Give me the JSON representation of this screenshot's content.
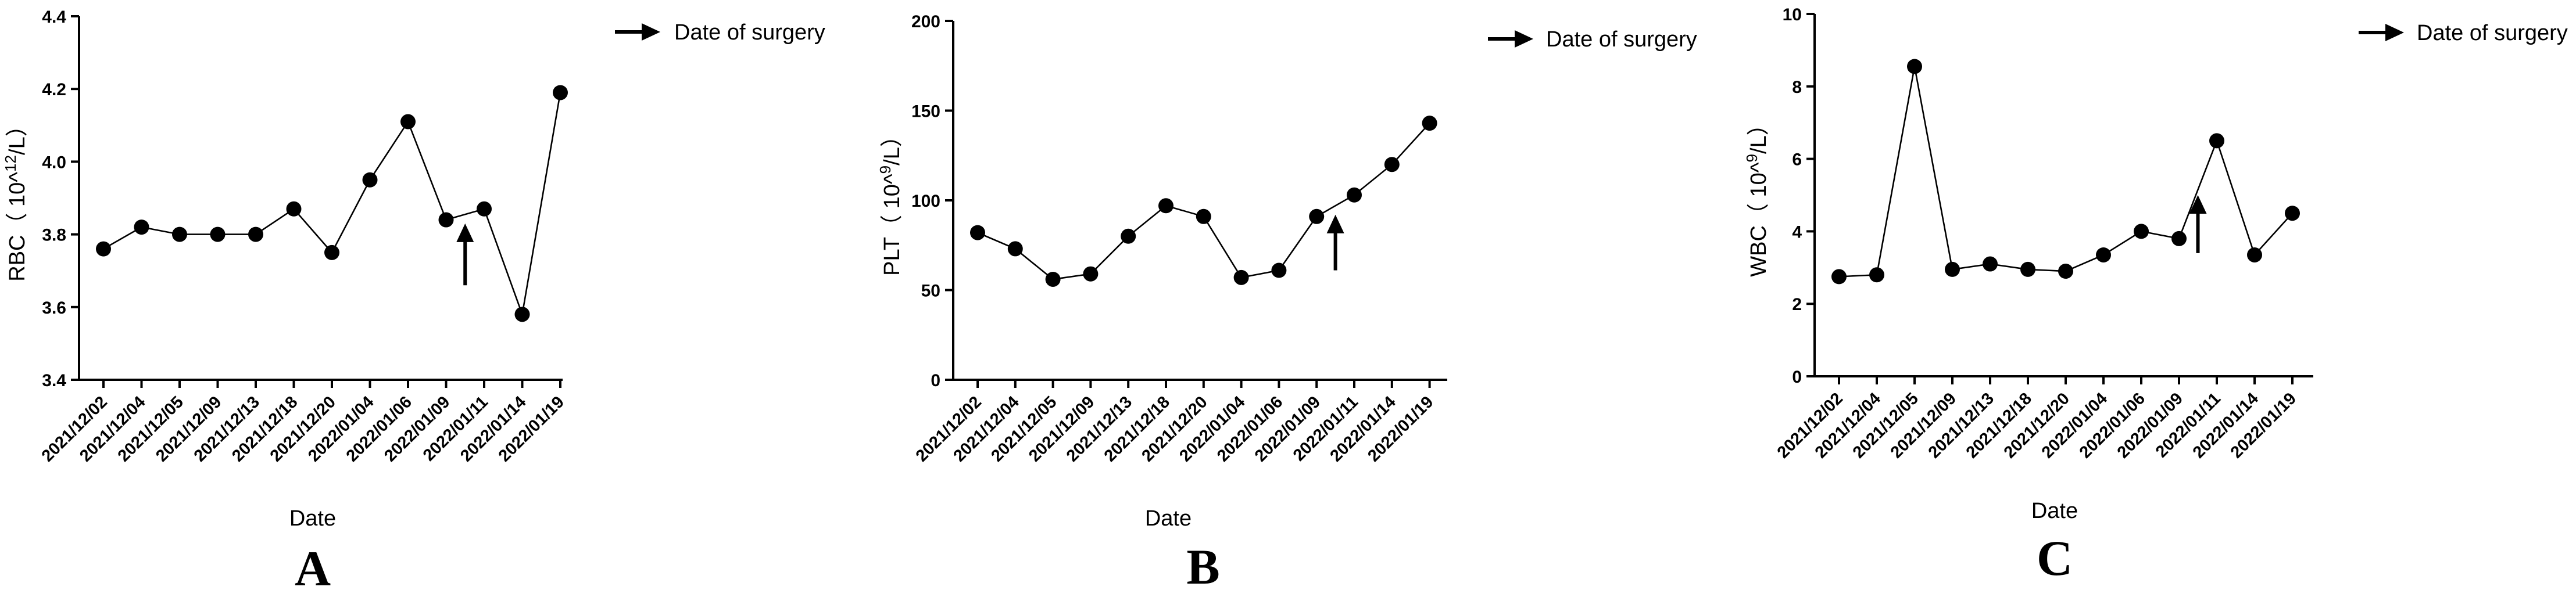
{
  "legend_label": "Date of surgery",
  "chart_data": [
    {
      "type": "line",
      "panel_label": "A",
      "ylabel": "RBC（ 10^12/L）",
      "ylabel_parts": [
        "RBC（ 10^",
        "12",
        "/L）"
      ],
      "xlabel": "Date",
      "ylim": [
        3.4,
        4.4
      ],
      "yticks": [
        "3.4",
        "3.6",
        "3.8",
        "4.0",
        "4.2",
        "4.4"
      ],
      "grid": false,
      "legend_position": "top-right",
      "categories": [
        "2021/12/02",
        "2021/12/04",
        "2021/12/05",
        "2021/12/09",
        "2021/12/13",
        "2021/12/18",
        "2021/12/20",
        "2022/01/04",
        "2022/01/06",
        "2022/01/09",
        "2022/01/11",
        "2022/01/14",
        "2022/01/19"
      ],
      "values": [
        3.76,
        3.82,
        3.8,
        3.8,
        3.8,
        3.87,
        3.75,
        3.95,
        4.11,
        3.84,
        3.87,
        3.58,
        4.19
      ],
      "surgery_marker": {
        "between": [
          "2022/01/09",
          "2022/01/11"
        ],
        "from": 3.66,
        "to": 3.83
      }
    },
    {
      "type": "line",
      "panel_label": "B",
      "ylabel": "PLT（ 10^9/L）",
      "ylabel_parts": [
        "PLT（ 10^",
        "9",
        "/L）"
      ],
      "xlabel": "Date",
      "ylim": [
        0,
        200
      ],
      "yticks": [
        "0",
        "50",
        "100",
        "150",
        "200"
      ],
      "grid": false,
      "legend_position": "top-right",
      "categories": [
        "2021/12/02",
        "2021/12/04",
        "2021/12/05",
        "2021/12/09",
        "2021/12/13",
        "2021/12/18",
        "2021/12/20",
        "2022/01/04",
        "2022/01/06",
        "2022/01/09",
        "2022/01/11",
        "2022/01/14",
        "2022/01/19"
      ],
      "values": [
        82,
        73,
        56,
        59,
        80,
        97,
        91,
        57,
        61,
        91,
        103,
        120,
        143
      ],
      "surgery_marker": {
        "between": [
          "2022/01/09",
          "2022/01/11"
        ],
        "from": 61,
        "to": 92
      }
    },
    {
      "type": "line",
      "panel_label": "C",
      "ylabel": "WBC（ 10^9/L）",
      "ylabel_parts": [
        "WBC（ 10^",
        "9",
        "/L）"
      ],
      "xlabel": "Date",
      "ylim": [
        0,
        10
      ],
      "yticks": [
        "0",
        "2",
        "4",
        "6",
        "8",
        "10"
      ],
      "grid": false,
      "legend_position": "top-right",
      "categories": [
        "2021/12/02",
        "2021/12/04",
        "2021/12/05",
        "2021/12/09",
        "2021/12/13",
        "2021/12/18",
        "2021/12/20",
        "2022/01/04",
        "2022/01/06",
        "2022/01/09",
        "2022/01/11",
        "2022/01/14",
        "2022/01/19"
      ],
      "values": [
        2.75,
        2.8,
        8.55,
        2.95,
        3.1,
        2.95,
        2.9,
        3.35,
        4.0,
        3.8,
        6.5,
        3.35,
        4.5
      ],
      "surgery_marker": {
        "between": [
          "2022/01/09",
          "2022/01/11"
        ],
        "from": 3.4,
        "to": 5.0
      }
    }
  ]
}
